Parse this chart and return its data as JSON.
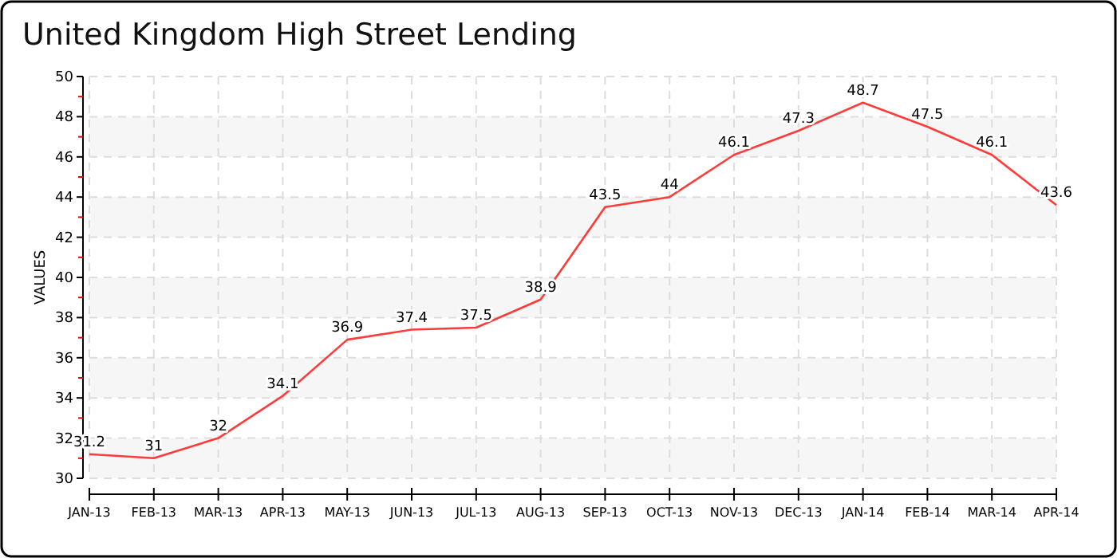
{
  "chart_data": {
    "type": "line",
    "title": "United Kingdom High Street Lending",
    "ylabel": "VALUES",
    "categories": [
      "JAN-13",
      "FEB-13",
      "MAR-13",
      "APR-13",
      "MAY-13",
      "JUN-13",
      "JUL-13",
      "AUG-13",
      "SEP-13",
      "OCT-13",
      "NOV-13",
      "DEC-13",
      "JAN-14",
      "FEB-14",
      "MAR-14",
      "APR-14"
    ],
    "series": [
      {
        "color": "#ff3b3b",
        "values": [
          31.2,
          31,
          32,
          34.1,
          36.9,
          37.4,
          37.5,
          38.9,
          43.5,
          44,
          46.1,
          47.3,
          48.7,
          47.5,
          46.1,
          43.6
        ]
      }
    ],
    "ylim": [
      30,
      50
    ],
    "yticks": [
      30,
      32,
      34,
      36,
      38,
      40,
      42,
      44,
      46,
      48,
      50
    ],
    "grid": true,
    "data_labels": true,
    "marker": "none",
    "line_style": "solid"
  }
}
